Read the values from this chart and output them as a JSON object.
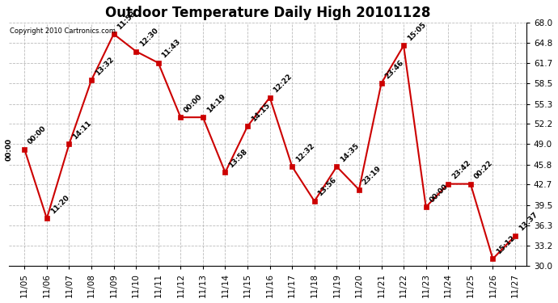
{
  "title": "Outdoor Temperature Daily High 20101128",
  "copyright": "Copyright 2010 Cartronics.com",
  "x_dates": [
    "11/05",
    "11/06",
    "11/07",
    "11/08",
    "11/09",
    "11/10",
    "11/11",
    "11/12",
    "11/13",
    "11/14",
    "11/15",
    "11/16",
    "11/17",
    "11/18",
    "11/19",
    "11/20",
    "11/21",
    "11/22",
    "11/23",
    "11/24",
    "11/25",
    "11/26",
    "11/27"
  ],
  "y_values": [
    48.2,
    37.4,
    49.0,
    59.0,
    66.2,
    63.5,
    61.7,
    53.2,
    53.2,
    44.6,
    51.8,
    56.3,
    45.5,
    40.1,
    45.5,
    41.9,
    58.5,
    64.4,
    39.2,
    42.8,
    42.8,
    31.1,
    34.7
  ],
  "point_labels": [
    "00:00",
    "11:20",
    "14:11",
    "13:32",
    "11:53",
    "12:30",
    "11:43",
    "00:00",
    "14:19",
    "13:58",
    "14:15",
    "12:22",
    "12:32",
    "13:56",
    "14:35",
    "23:19",
    "23:46",
    "15:05",
    "00:00",
    "23:42",
    "00:22",
    "15:12",
    "13:37"
  ],
  "ylim": [
    30.0,
    68.0
  ],
  "yticks": [
    30.0,
    33.2,
    36.3,
    39.5,
    42.7,
    45.8,
    49.0,
    52.2,
    55.3,
    58.5,
    61.7,
    64.8,
    68.0
  ],
  "line_color": "#cc0000",
  "marker_color": "#cc0000",
  "bg_color": "#ffffff",
  "grid_color": "#bbbbbb",
  "title_fontsize": 12,
  "tick_fontsize": 7.5,
  "annot_fontsize": 6.5
}
